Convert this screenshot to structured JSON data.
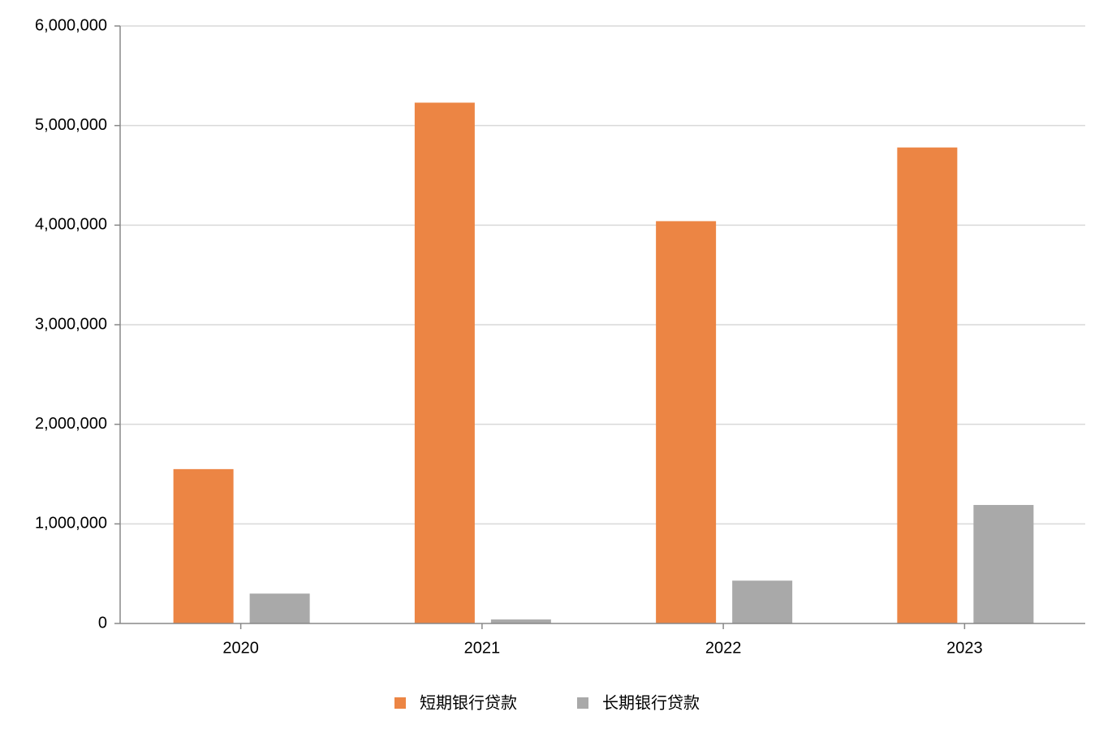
{
  "chart_data": {
    "type": "bar",
    "categories": [
      "2020",
      "2021",
      "2022",
      "2023"
    ],
    "series": [
      {
        "name": "短期银行贷款",
        "color": "#ec8544",
        "values": [
          1550000,
          5230000,
          4040000,
          4780000
        ]
      },
      {
        "name": "长期银行贷款",
        "color": "#a9a9a9",
        "values": [
          300000,
          40000,
          430000,
          1190000
        ]
      }
    ],
    "ylim": [
      0,
      6000000
    ],
    "yticks": [
      0,
      {
        "value": 1000000,
        "label": "1,000,000"
      },
      {
        "value": 2000000,
        "label": "2,000,000"
      },
      {
        "value": 3000000,
        "label": "3,000,000"
      },
      {
        "value": 4000000,
        "label": "4,000,000"
      },
      {
        "value": 5000000,
        "label": "5,000,000"
      },
      {
        "value": 6000000,
        "label": "6,000,000"
      }
    ],
    "grid": true,
    "legend": "bottom"
  }
}
